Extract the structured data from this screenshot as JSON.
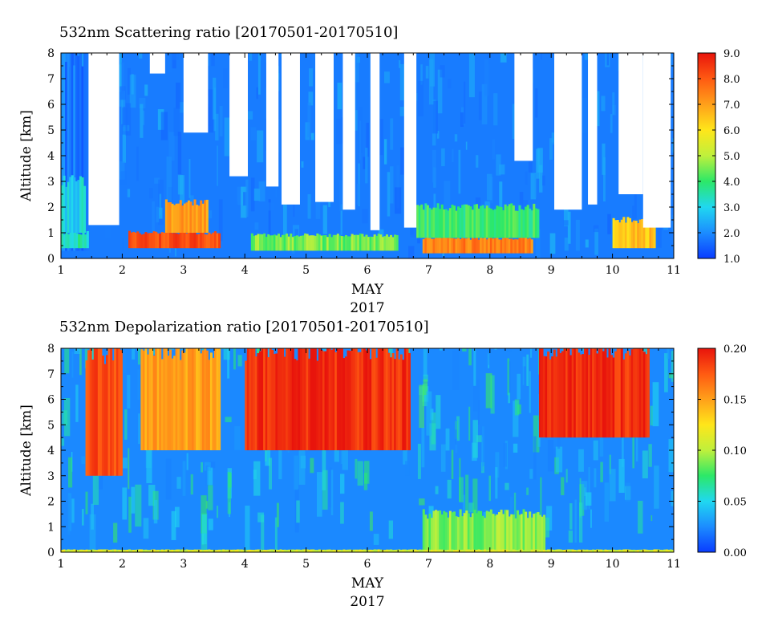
{
  "chart_data": [
    {
      "type": "heatmap",
      "title": "532nm Scattering ratio [20170501-20170510]",
      "ylabel": "Altitude [km]",
      "xlabel_month": "MAY",
      "xlabel_year": "2017",
      "xlim": [
        1,
        11
      ],
      "ylim": [
        0,
        8
      ],
      "x_ticks": [
        "1",
        "2",
        "3",
        "4",
        "5",
        "6",
        "7",
        "8",
        "9",
        "10",
        "11"
      ],
      "y_ticks": [
        "0",
        "1",
        "2",
        "3",
        "4",
        "5",
        "6",
        "7",
        "8"
      ],
      "colorbar": {
        "min": 1.0,
        "max": 9.0,
        "tick_labels": [
          "1.0",
          "2.0",
          "3.0",
          "4.0",
          "5.0",
          "6.0",
          "7.0",
          "8.0",
          "9.0"
        ],
        "colors": [
          "#0a3cff",
          "#1c8cff",
          "#20d8f0",
          "#2ce868",
          "#bff03c",
          "#ffe61a",
          "#ffa01a",
          "#ff5a12",
          "#e8140c"
        ]
      },
      "white_regions_note_values": "missing data",
      "layers": [
        {
          "x": [
            1.0,
            1.5
          ],
          "alt_low": 0.3,
          "alt_high": 8.0,
          "value": 1.8
        },
        {
          "x": [
            1.0,
            1.45
          ],
          "alt_low": 0.4,
          "alt_high": 1.0,
          "value": 3.5
        },
        {
          "x": [
            1.0,
            1.4
          ],
          "alt_low": 1.0,
          "alt_high": 3.0,
          "value": 3.0
        },
        {
          "x": [
            2.1,
            3.6
          ],
          "alt_low": 0.4,
          "alt_high": 1.0,
          "value": 8.2
        },
        {
          "x": [
            2.7,
            3.4
          ],
          "alt_low": 1.0,
          "alt_high": 2.2,
          "value": 7.0
        },
        {
          "x": [
            4.1,
            6.5
          ],
          "alt_low": 0.3,
          "alt_high": 0.9,
          "value": 4.5
        },
        {
          "x": [
            6.9,
            8.7
          ],
          "alt_low": 0.2,
          "alt_high": 0.8,
          "value": 7.5
        },
        {
          "x": [
            6.8,
            8.8
          ],
          "alt_low": 0.8,
          "alt_high": 2.0,
          "value": 4.0
        },
        {
          "x": [
            10.0,
            10.7
          ],
          "alt_low": 0.4,
          "alt_high": 1.5,
          "value": 6.5
        }
      ]
    },
    {
      "type": "heatmap",
      "title": "532nm Depolarization ratio [20170501-20170510]",
      "ylabel": "Altitude [km]",
      "xlabel_month": "MAY",
      "xlabel_year": "2017",
      "xlim": [
        1,
        11
      ],
      "ylim": [
        0,
        8
      ],
      "x_ticks": [
        "1",
        "2",
        "3",
        "4",
        "5",
        "6",
        "7",
        "8",
        "9",
        "10",
        "11"
      ],
      "y_ticks": [
        "0",
        "1",
        "2",
        "3",
        "4",
        "5",
        "6",
        "7",
        "8"
      ],
      "colorbar": {
        "min": 0.0,
        "max": 0.2,
        "tick_labels": [
          "0.00",
          "0.05",
          "0.10",
          "0.15",
          "0.20"
        ],
        "colors": [
          "#0a3cff",
          "#1c8cff",
          "#20d8f0",
          "#2ce868",
          "#bff03c",
          "#ffe61a",
          "#ffa01a",
          "#ff5a12",
          "#e8140c"
        ]
      },
      "layers": [
        {
          "x": [
            1.4,
            2.0
          ],
          "alt_low": 3.0,
          "alt_high": 8.0,
          "value": 0.18
        },
        {
          "x": [
            2.3,
            3.6
          ],
          "alt_low": 4.0,
          "alt_high": 8.0,
          "value": 0.15
        },
        {
          "x": [
            4.0,
            6.7
          ],
          "alt_low": 4.0,
          "alt_high": 8.0,
          "value": 0.19
        },
        {
          "x": [
            8.8,
            10.6
          ],
          "alt_low": 4.5,
          "alt_high": 8.0,
          "value": 0.19
        },
        {
          "x": [
            6.9,
            8.9
          ],
          "alt_low": 0.0,
          "alt_high": 1.5,
          "value": 0.09
        },
        {
          "x": [
            1.0,
            11.0
          ],
          "alt_low": 0.0,
          "alt_high": 0.1,
          "value": 0.11
        }
      ]
    }
  ]
}
